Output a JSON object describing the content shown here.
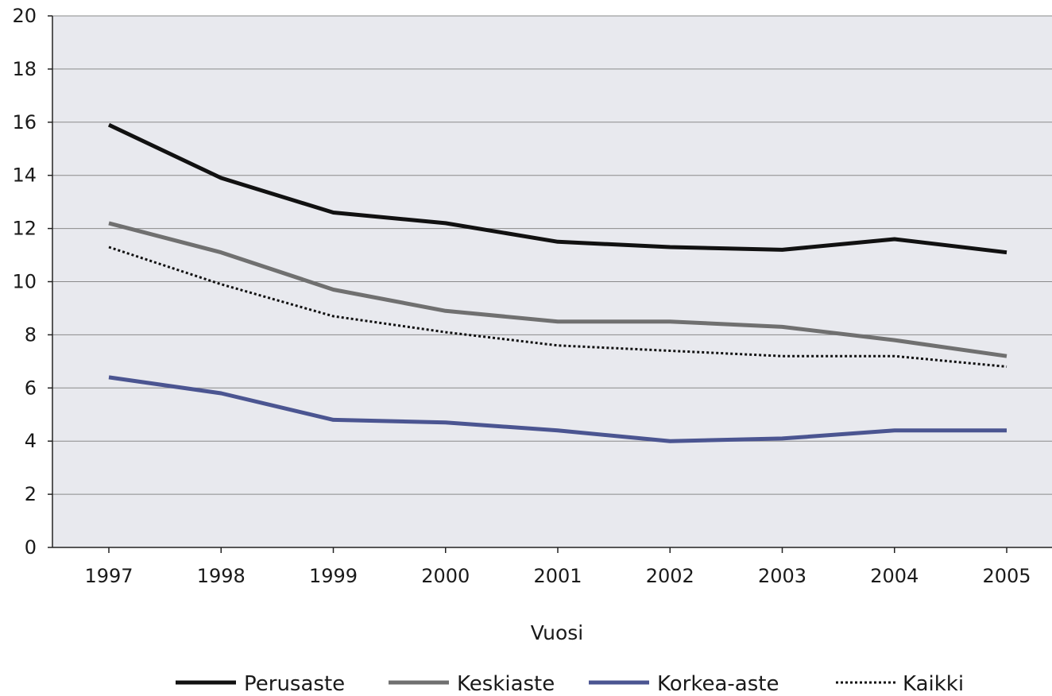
{
  "chart_data": {
    "type": "line",
    "title": "",
    "xlabel": "Vuosi",
    "ylabel": "",
    "categories": [
      "1997",
      "1998",
      "1999",
      "2000",
      "2001",
      "2002",
      "2003",
      "2004",
      "2005"
    ],
    "ylim": [
      0,
      20
    ],
    "yticks": [
      "0",
      "2",
      "4",
      "6",
      "8",
      "10",
      "12",
      "14",
      "16",
      "18",
      "20"
    ],
    "grid": true,
    "legend_position": "bottom",
    "background_color": "#e8e9ee",
    "series": [
      {
        "name": "Perusaste",
        "color": "#111111",
        "style": "solid",
        "values": [
          15.9,
          13.9,
          12.6,
          12.2,
          11.5,
          11.3,
          11.2,
          11.6,
          11.1
        ]
      },
      {
        "name": "Keskiaste",
        "color": "#707070",
        "style": "solid",
        "values": [
          12.2,
          11.1,
          9.7,
          8.9,
          8.5,
          8.5,
          8.3,
          7.8,
          7.2
        ]
      },
      {
        "name": "Korkea-aste",
        "color": "#4b5591",
        "style": "solid",
        "values": [
          6.4,
          5.8,
          4.8,
          4.7,
          4.4,
          4.0,
          4.1,
          4.4,
          4.4
        ]
      },
      {
        "name": "Kaikki",
        "color": "#111111",
        "style": "dotted",
        "values": [
          11.3,
          9.9,
          8.7,
          8.1,
          7.6,
          7.4,
          7.2,
          7.2,
          6.8
        ]
      }
    ]
  }
}
